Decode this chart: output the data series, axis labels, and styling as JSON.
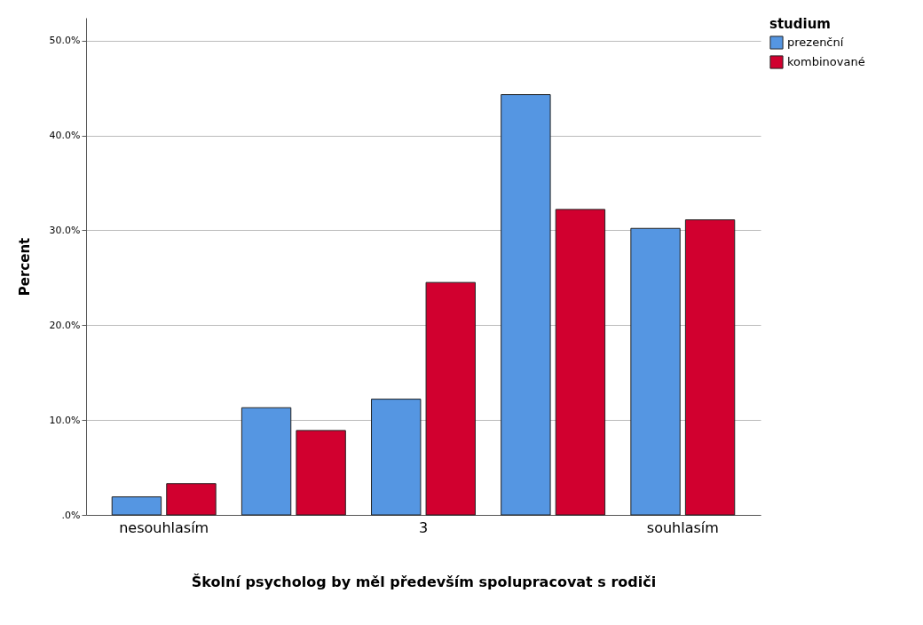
{
  "chart_data": {
    "type": "bar",
    "xlabel": "Školní psycholog by měl především spolupracovat s rodiči",
    "ylabel": "Percent",
    "legend_title": "studium",
    "categories": [
      "nesouhlasím",
      null,
      "3",
      null,
      "souhlasím"
    ],
    "series": [
      {
        "name": "prezenční",
        "color": "#5596e2",
        "values": [
          1.9,
          11.3,
          12.2,
          44.3,
          30.2
        ]
      },
      {
        "name": "kombinované",
        "color": "#d1002f",
        "values": [
          3.3,
          8.9,
          24.5,
          32.2,
          31.1
        ]
      }
    ],
    "ylim": [
      0,
      52.4
    ],
    "yticks": [
      {
        "value": 0,
        "label": ".0%"
      },
      {
        "value": 10,
        "label": "10.0%"
      },
      {
        "value": 20,
        "label": "20.0%"
      },
      {
        "value": 30,
        "label": "30.0%"
      },
      {
        "value": 40,
        "label": "40.0%"
      },
      {
        "value": 50,
        "label": "50.0%"
      }
    ],
    "grid": "y",
    "legend": "top right"
  }
}
